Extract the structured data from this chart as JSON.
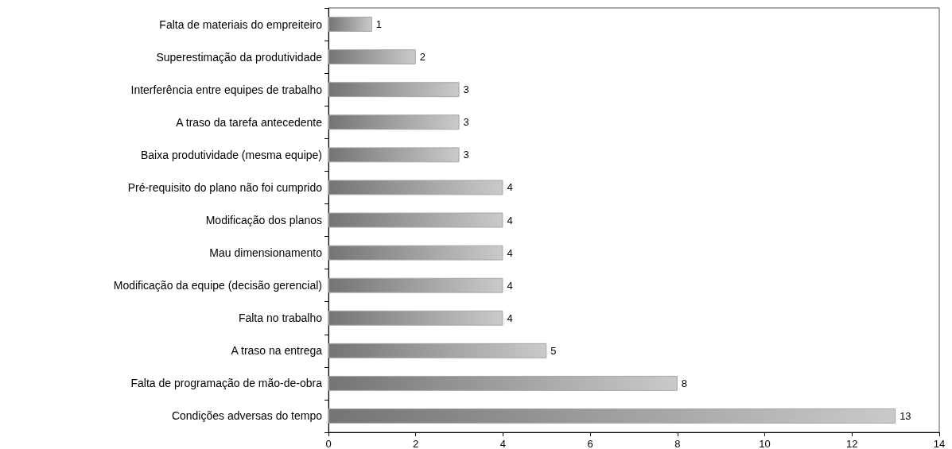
{
  "chart_data": {
    "type": "bar",
    "orientation": "horizontal",
    "categories": [
      "Falta de materiais do empreiteiro",
      "Superestimação da produtividade",
      "Interferência entre equipes de trabalho",
      "A traso da tarefa antecedente",
      "Baixa produtividade (mesma equipe)",
      "Pré-requisito do plano não foi cumprido",
      "Modificação dos planos",
      "Mau dimensionamento",
      "Modificação da equipe (decisão gerencial)",
      "Falta no trabalho",
      "A traso na entrega",
      "Falta de programação de mão-de-obra",
      "Condições adversas do tempo"
    ],
    "values": [
      1,
      2,
      3,
      3,
      3,
      4,
      4,
      4,
      4,
      4,
      5,
      8,
      13
    ],
    "color": "#a6a6a6",
    "xlim": [
      0,
      14
    ],
    "xticks": [
      0,
      2,
      4,
      6,
      8,
      10,
      12,
      14
    ],
    "data_labels": true
  }
}
